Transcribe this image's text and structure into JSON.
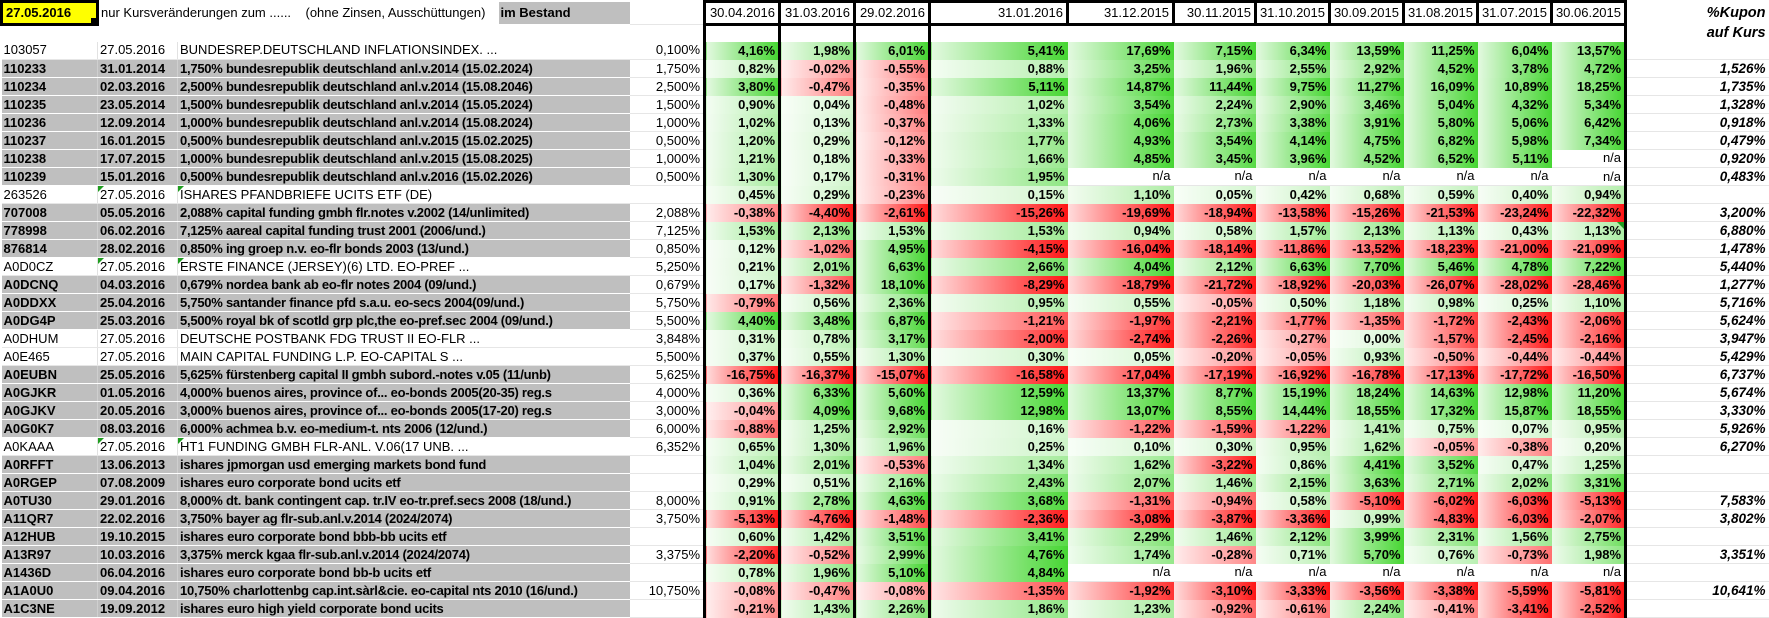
{
  "header": {
    "selected_date": "27.05.2016",
    "note": "nur Kursveränderungen zum ......    (ohne Zinsen, Ausschüttungen)",
    "bestand_label": "im Bestand",
    "kupon_label_1": "%Kupon",
    "kupon_label_2": "auf Kurs",
    "date_columns": [
      "30.04.2016",
      "31.03.2016",
      "29.02.2016",
      "31.01.2016",
      "31.12.2015",
      "30.11.2015",
      "31.10.2015",
      "30.09.2015",
      "31.08.2015",
      "31.07.2015",
      "30.06.2015"
    ]
  },
  "colors": {
    "positive": "#46D632",
    "negative": "#FF1414",
    "row_grey": "#BFBFBF",
    "selected_yellow": "#FFFF00",
    "marker_green": "#1F9D1F"
  },
  "rows": [
    {
      "id": "103057",
      "date": "27.05.2016",
      "name": "BUNDESREP.DEUTSCHLAND INFLATIONSINDEX. ...",
      "bestand": "0,100%",
      "values": [
        "4,16%",
        "1,98%",
        "6,01%",
        "5,41%",
        "17,69%",
        "7,15%",
        "6,34%",
        "13,59%",
        "11,25%",
        "6,04%",
        "13,57%"
      ],
      "kupon": "",
      "hl": "w"
    },
    {
      "id": "110233",
      "date": "31.01.2014",
      "name": "1,750% bundesrepublik deutschland anl.v.2014 (15.02.2024)",
      "bestand": "1,750%",
      "values": [
        "0,82%",
        "-0,02%",
        "-0,55%",
        "0,88%",
        "3,25%",
        "1,96%",
        "2,55%",
        "2,92%",
        "4,52%",
        "3,78%",
        "4,72%"
      ],
      "kupon": "1,526%",
      "hl": "g"
    },
    {
      "id": "110234",
      "date": "02.03.2016",
      "name": "2,500% bundesrepublik deutschland anl.v.2014 (15.08.2046)",
      "bestand": "2,500%",
      "values": [
        "3,80%",
        "-0,47%",
        "-0,35%",
        "5,11%",
        "14,87%",
        "11,44%",
        "9,75%",
        "11,27%",
        "16,09%",
        "10,89%",
        "18,25%"
      ],
      "kupon": "1,735%",
      "hl": "g"
    },
    {
      "id": "110235",
      "date": "23.05.2014",
      "name": "1,500% bundesrepublik deutschland anl.v.2014 (15.05.2024)",
      "bestand": "1,500%",
      "values": [
        "0,90%",
        "0,04%",
        "-0,48%",
        "1,02%",
        "3,54%",
        "2,24%",
        "2,90%",
        "3,46%",
        "5,04%",
        "4,32%",
        "5,34%"
      ],
      "kupon": "1,328%",
      "hl": "g"
    },
    {
      "id": "110236",
      "date": "12.09.2014",
      "name": "1,000% bundesrepublik deutschland anl.v.2014 (15.08.2024)",
      "bestand": "1,000%",
      "values": [
        "1,02%",
        "0,13%",
        "-0,37%",
        "1,33%",
        "4,06%",
        "2,73%",
        "3,38%",
        "3,91%",
        "5,80%",
        "5,06%",
        "6,42%"
      ],
      "kupon": "0,918%",
      "hl": "g"
    },
    {
      "id": "110237",
      "date": "16.01.2015",
      "name": "0,500% bundesrepublik deutschland anl.v.2015 (15.02.2025)",
      "bestand": "0,500%",
      "values": [
        "1,20%",
        "0,29%",
        "-0,12%",
        "1,77%",
        "4,93%",
        "3,54%",
        "4,14%",
        "4,75%",
        "6,82%",
        "5,98%",
        "7,34%"
      ],
      "kupon": "0,479%",
      "hl": "g"
    },
    {
      "id": "110238",
      "date": "17.07.2015",
      "name": "1,000% bundesrepublik deutschland anl.v.2015 (15.08.2025)",
      "bestand": "1,000%",
      "values": [
        "1,21%",
        "0,18%",
        "-0,33%",
        "1,66%",
        "4,85%",
        "3,45%",
        "3,96%",
        "4,52%",
        "6,52%",
        "5,11%",
        "n/a"
      ],
      "kupon": "0,920%",
      "hl": "g"
    },
    {
      "id": "110239",
      "date": "15.01.2016",
      "name": "0,500% bundesrepublik deutschland anl.v.2016 (15.02.2026)",
      "bestand": "0,500%",
      "values": [
        "1,30%",
        "0,17%",
        "-0,31%",
        "1,95%",
        "n/a",
        "n/a",
        "n/a",
        "n/a",
        "n/a",
        "n/a",
        "n/a"
      ],
      "kupon": "0,483%",
      "hl": "g"
    },
    {
      "id": "263526",
      "date": "27.05.2016",
      "name": "ISHARES PFANDBRIEFE UCITS ETF (DE)",
      "bestand": "",
      "values": [
        "0,45%",
        "0,29%",
        "-0,23%",
        "0,15%",
        "1,10%",
        "0,05%",
        "0,42%",
        "0,68%",
        "0,59%",
        "0,40%",
        "0,94%"
      ],
      "kupon": "",
      "hl": "w",
      "mark": true
    },
    {
      "id": "707008",
      "date": "05.05.2016",
      "name": "2,088% capital funding gmbh flr.notes v.2002 (14/unlimited)",
      "bestand": "2,088%",
      "values": [
        "-0,38%",
        "-4,40%",
        "-2,61%",
        "-15,26%",
        "-19,69%",
        "-18,94%",
        "-13,58%",
        "-15,26%",
        "-21,53%",
        "-23,24%",
        "-22,32%"
      ],
      "kupon": "3,200%",
      "hl": "g"
    },
    {
      "id": "778998",
      "date": "06.02.2016",
      "name": "7,125% aareal capital funding trust 2001 (2006/und.)",
      "bestand": "7,125%",
      "values": [
        "1,53%",
        "2,13%",
        "1,53%",
        "1,53%",
        "0,94%",
        "0,58%",
        "1,57%",
        "2,13%",
        "1,13%",
        "0,43%",
        "1,13%"
      ],
      "kupon": "6,880%",
      "hl": "g",
      "kmark": true
    },
    {
      "id": "876814",
      "date": "28.02.2016",
      "name": "0,850% ing groep n.v. eo-flr bonds 2003 (13/und.)",
      "bestand": "0,850%",
      "values": [
        "0,12%",
        "-1,02%",
        "4,95%",
        "-4,15%",
        "-16,04%",
        "-18,14%",
        "-11,86%",
        "-13,52%",
        "-18,23%",
        "-21,00%",
        "-21,09%"
      ],
      "kupon": "1,478%",
      "hl": "g"
    },
    {
      "id": "A0D0CZ",
      "date": "27.05.2016",
      "name": "ERSTE FINANCE (JERSEY)(6) LTD. EO-PREF ...",
      "bestand": "5,250%",
      "values": [
        "0,21%",
        "2,01%",
        "6,63%",
        "2,66%",
        "4,04%",
        "2,12%",
        "6,63%",
        "7,70%",
        "5,46%",
        "4,78%",
        "7,22%"
      ],
      "kupon": "5,440%",
      "hl": "w",
      "mark": true
    },
    {
      "id": "A0DCNQ",
      "date": "04.03.2016",
      "name": "0,679% nordea bank ab eo-flr notes 2004 (09/und.)",
      "bestand": "0,679%",
      "values": [
        "0,17%",
        "-1,32%",
        "18,10%",
        "-8,29%",
        "-18,79%",
        "-21,72%",
        "-18,92%",
        "-20,03%",
        "-26,07%",
        "-28,02%",
        "-28,46%"
      ],
      "kupon": "1,277%",
      "hl": "g"
    },
    {
      "id": "A0DDXX",
      "date": "25.04.2016",
      "name": "5,750% santander finance pfd s.a.u. eo-secs 2004(09/und.)",
      "bestand": "5,750%",
      "values": [
        "-0,79%",
        "0,56%",
        "2,36%",
        "0,95%",
        "0,55%",
        "-0,05%",
        "0,50%",
        "1,18%",
        "0,98%",
        "0,25%",
        "1,10%"
      ],
      "kupon": "5,716%",
      "hl": "g"
    },
    {
      "id": "A0DG4P",
      "date": "25.03.2016",
      "name": "5,500% royal bk of scotld grp plc,the eo-pref.sec 2004 (09/und.)",
      "bestand": "5,500%",
      "values": [
        "4,40%",
        "3,48%",
        "6,87%",
        "-1,21%",
        "-1,97%",
        "-2,21%",
        "-1,77%",
        "-1,35%",
        "-1,72%",
        "-2,43%",
        "-2,06%"
      ],
      "kupon": "5,624%",
      "hl": "g"
    },
    {
      "id": "A0DHUM",
      "date": "27.05.2016",
      "name": "DEUTSCHE POSTBANK FDG TRUST II EO-FLR ...",
      "bestand": "3,848%",
      "values": [
        "0,31%",
        "0,78%",
        "3,17%",
        "-2,00%",
        "-2,74%",
        "-2,26%",
        "-0,27%",
        "0,00%",
        "-1,57%",
        "-2,45%",
        "-2,16%"
      ],
      "kupon": "3,947%",
      "hl": "w"
    },
    {
      "id": "A0E465",
      "date": "27.05.2016",
      "name": "MAIN CAPITAL FUNDING L.P. EO-CAPITAL S ...",
      "bestand": "5,500%",
      "values": [
        "0,37%",
        "0,55%",
        "1,30%",
        "0,30%",
        "0,05%",
        "-0,20%",
        "-0,05%",
        "0,93%",
        "-0,50%",
        "-0,44%",
        "-0,44%"
      ],
      "kupon": "5,429%",
      "hl": "w"
    },
    {
      "id": "A0EUBN",
      "date": "25.05.2016",
      "name": "5,625% fürstenberg capital II gmbh subord.-notes v.05 (11/unb)",
      "bestand": "5,625%",
      "values": [
        "-16,75%",
        "-16,37%",
        "-15,07%",
        "-16,58%",
        "-17,04%",
        "-17,19%",
        "-16,92%",
        "-16,78%",
        "-17,13%",
        "-17,72%",
        "-16,50%"
      ],
      "kupon": "6,737%",
      "hl": "g"
    },
    {
      "id": "A0GJKR",
      "date": "01.05.2016",
      "name": "4,000% buenos aires, province of... eo-bonds 2005(20-35) reg.s",
      "bestand": "4,000%",
      "values": [
        "0,36%",
        "6,33%",
        "5,60%",
        "12,59%",
        "13,37%",
        "8,77%",
        "15,19%",
        "18,24%",
        "14,63%",
        "12,98%",
        "11,20%"
      ],
      "kupon": "5,674%",
      "hl": "g"
    },
    {
      "id": "A0GJKV",
      "date": "20.05.2016",
      "name": "3,000% buenos aires, province of... eo-bonds 2005(17-20) reg.s",
      "bestand": "3,000%",
      "values": [
        "-0,04%",
        "4,09%",
        "9,68%",
        "12,98%",
        "13,07%",
        "8,55%",
        "14,44%",
        "18,55%",
        "17,32%",
        "15,87%",
        "18,55%"
      ],
      "kupon": "3,330%",
      "hl": "g"
    },
    {
      "id": "A0G0K7",
      "date": "08.03.2016",
      "name": "6,000% achmea b.v. eo-medium-t. nts 2006 (12/und.)",
      "bestand": "6,000%",
      "values": [
        "-0,88%",
        "1,25%",
        "2,92%",
        "0,16%",
        "-1,22%",
        "-1,59%",
        "-1,22%",
        "1,41%",
        "0,75%",
        "0,07%",
        "0,95%"
      ],
      "kupon": "5,926%",
      "hl": "g"
    },
    {
      "id": "A0KAAA",
      "date": "27.05.2016",
      "name": "HT1 FUNDING GMBH FLR-ANL. V.06(17 UNB. ...",
      "bestand": "6,352%",
      "values": [
        "0,65%",
        "1,30%",
        "1,96%",
        "0,25%",
        "0,10%",
        "0,30%",
        "0,95%",
        "1,62%",
        "-0,05%",
        "-0,38%",
        "0,20%"
      ],
      "kupon": "6,270%",
      "hl": "w",
      "mark": true
    },
    {
      "id": "A0RFFT",
      "date": "13.06.2013",
      "name": "ishares jpmorgan usd emerging markets bond fund",
      "bestand": "",
      "values": [
        "1,04%",
        "2,01%",
        "-0,53%",
        "1,34%",
        "1,62%",
        "-3,22%",
        "0,86%",
        "4,41%",
        "3,52%",
        "0,47%",
        "1,25%"
      ],
      "kupon": "",
      "hl": "g"
    },
    {
      "id": "A0RGEP",
      "date": "07.08.2009",
      "name": "ishares euro corporate bond ucits etf",
      "bestand": "",
      "values": [
        "0,29%",
        "0,51%",
        "2,16%",
        "2,43%",
        "2,07%",
        "1,46%",
        "2,15%",
        "3,63%",
        "2,71%",
        "2,02%",
        "3,31%"
      ],
      "kupon": "",
      "hl": "g"
    },
    {
      "id": "A0TU30",
      "date": "29.01.2016",
      "name": "8,000% dt. bank contingent cap. tr.IV eo-tr.pref.secs 2008 (18/und.)",
      "bestand": "8,000%",
      "values": [
        "0,91%",
        "2,78%",
        "4,63%",
        "3,68%",
        "-1,31%",
        "-0,94%",
        "0,58%",
        "-5,10%",
        "-6,02%",
        "-6,03%",
        "-5,13%"
      ],
      "kupon": "7,583%",
      "hl": "g"
    },
    {
      "id": "A11QR7",
      "date": "22.02.2016",
      "name": "3,750% bayer ag flr-sub.anl.v.2014 (2024/2074)",
      "bestand": "3,750%",
      "values": [
        "-5,13%",
        "-4,76%",
        "-1,48%",
        "-2,36%",
        "-3,08%",
        "-3,87%",
        "-3,36%",
        "0,99%",
        "-4,83%",
        "-6,03%",
        "-2,07%"
      ],
      "kupon": "3,802%",
      "hl": "g"
    },
    {
      "id": "A12HUB",
      "date": "19.10.2015",
      "name": "ishares euro corporate bond bbb-bb ucits etf",
      "bestand": "",
      "values": [
        "0,60%",
        "1,42%",
        "3,51%",
        "3,41%",
        "2,29%",
        "1,46%",
        "2,12%",
        "3,99%",
        "2,31%",
        "1,56%",
        "2,75%"
      ],
      "kupon": "",
      "hl": "g"
    },
    {
      "id": "A13R97",
      "date": "10.03.2016",
      "name": "3,375% merck kgaa flr-sub.anl.v.2014 (2024/2074)",
      "bestand": "3,375%",
      "values": [
        "-2,20%",
        "-0,52%",
        "2,99%",
        "4,76%",
        "1,74%",
        "-0,28%",
        "0,71%",
        "5,70%",
        "0,76%",
        "-0,73%",
        "1,98%"
      ],
      "kupon": "3,351%",
      "hl": "g"
    },
    {
      "id": "A1436D",
      "date": "06.04.2016",
      "name": "ishares euro corporate bond bb-b ucits etf",
      "bestand": "",
      "values": [
        "0,78%",
        "1,96%",
        "5,10%",
        "4,84%",
        "n/a",
        "n/a",
        "n/a",
        "n/a",
        "n/a",
        "n/a",
        "n/a"
      ],
      "kupon": "",
      "hl": "g"
    },
    {
      "id": "A1A0U0",
      "date": "09.04.2016",
      "name": "10,750% charlottenbg cap.int.sàrl&cie. eo-capital nts 2010 (16/und.)",
      "bestand": "10,750%",
      "values": [
        "-0,08%",
        "-0,47%",
        "-0,08%",
        "-1,35%",
        "-1,92%",
        "-3,10%",
        "-3,33%",
        "-3,56%",
        "-3,38%",
        "-5,59%",
        "-5,81%"
      ],
      "kupon": "10,641%",
      "hl": "g"
    },
    {
      "id": "A1C3NE",
      "date": "19.09.2012",
      "name": "ishares euro high yield corporate bond ucits",
      "bestand": "",
      "values": [
        "-0,21%",
        "1,43%",
        "2,26%",
        "1,86%",
        "1,23%",
        "-0,92%",
        "-0,61%",
        "2,24%",
        "-0,41%",
        "-3,41%",
        "-2,52%"
      ],
      "kupon": "",
      "hl": "g"
    }
  ]
}
